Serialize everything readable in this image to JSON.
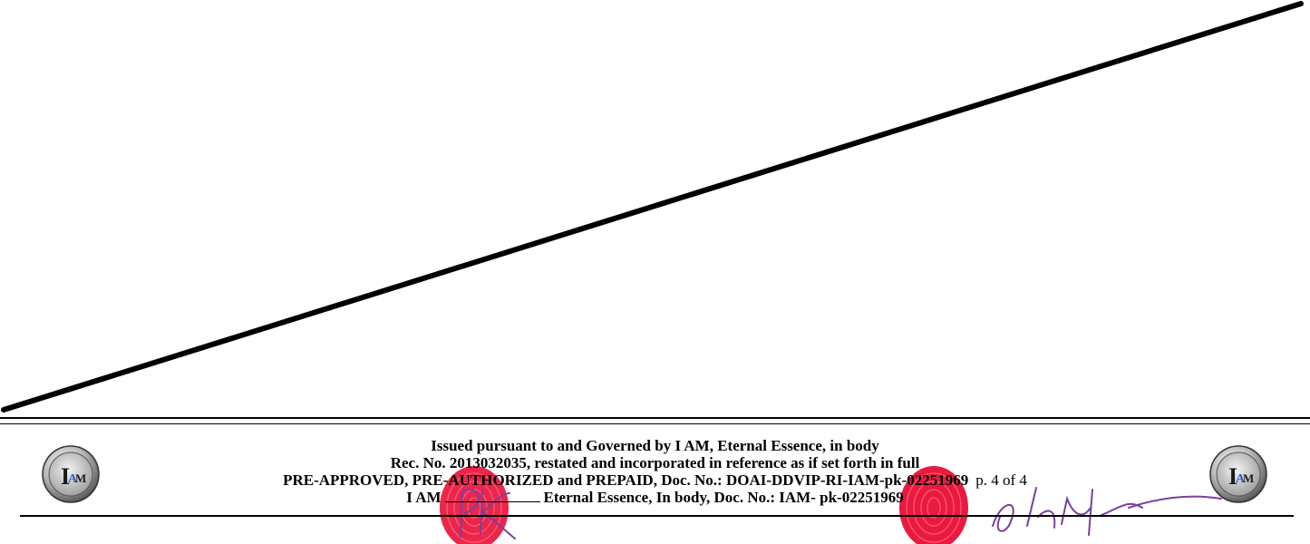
{
  "footer": {
    "line1": "Issued pursuant to and Governed by I AM, Eternal Essence, in body",
    "line2": "Rec. No. 2013032035, restated and incorporated in reference as if set forth in full",
    "line3": "PRE-APPROVED, PRE-AUTHORIZED and PREPAID, Doc. No.: DOAI-DDVIP-RI-IAM-pk-02251969",
    "page_number": "p. 4 of 4",
    "line4_prefix": "I AM",
    "line4_suffix": "Eternal Essence, In body, Doc. No.: IAM- pk-02251969"
  },
  "seal": {
    "icon": "iam-seal-icon",
    "text": "IAM"
  },
  "colors": {
    "ink": "#000000",
    "thumbprint": "#e8002a",
    "signature": "#7a3fa0",
    "seal_blue": "#2a5cc8"
  }
}
